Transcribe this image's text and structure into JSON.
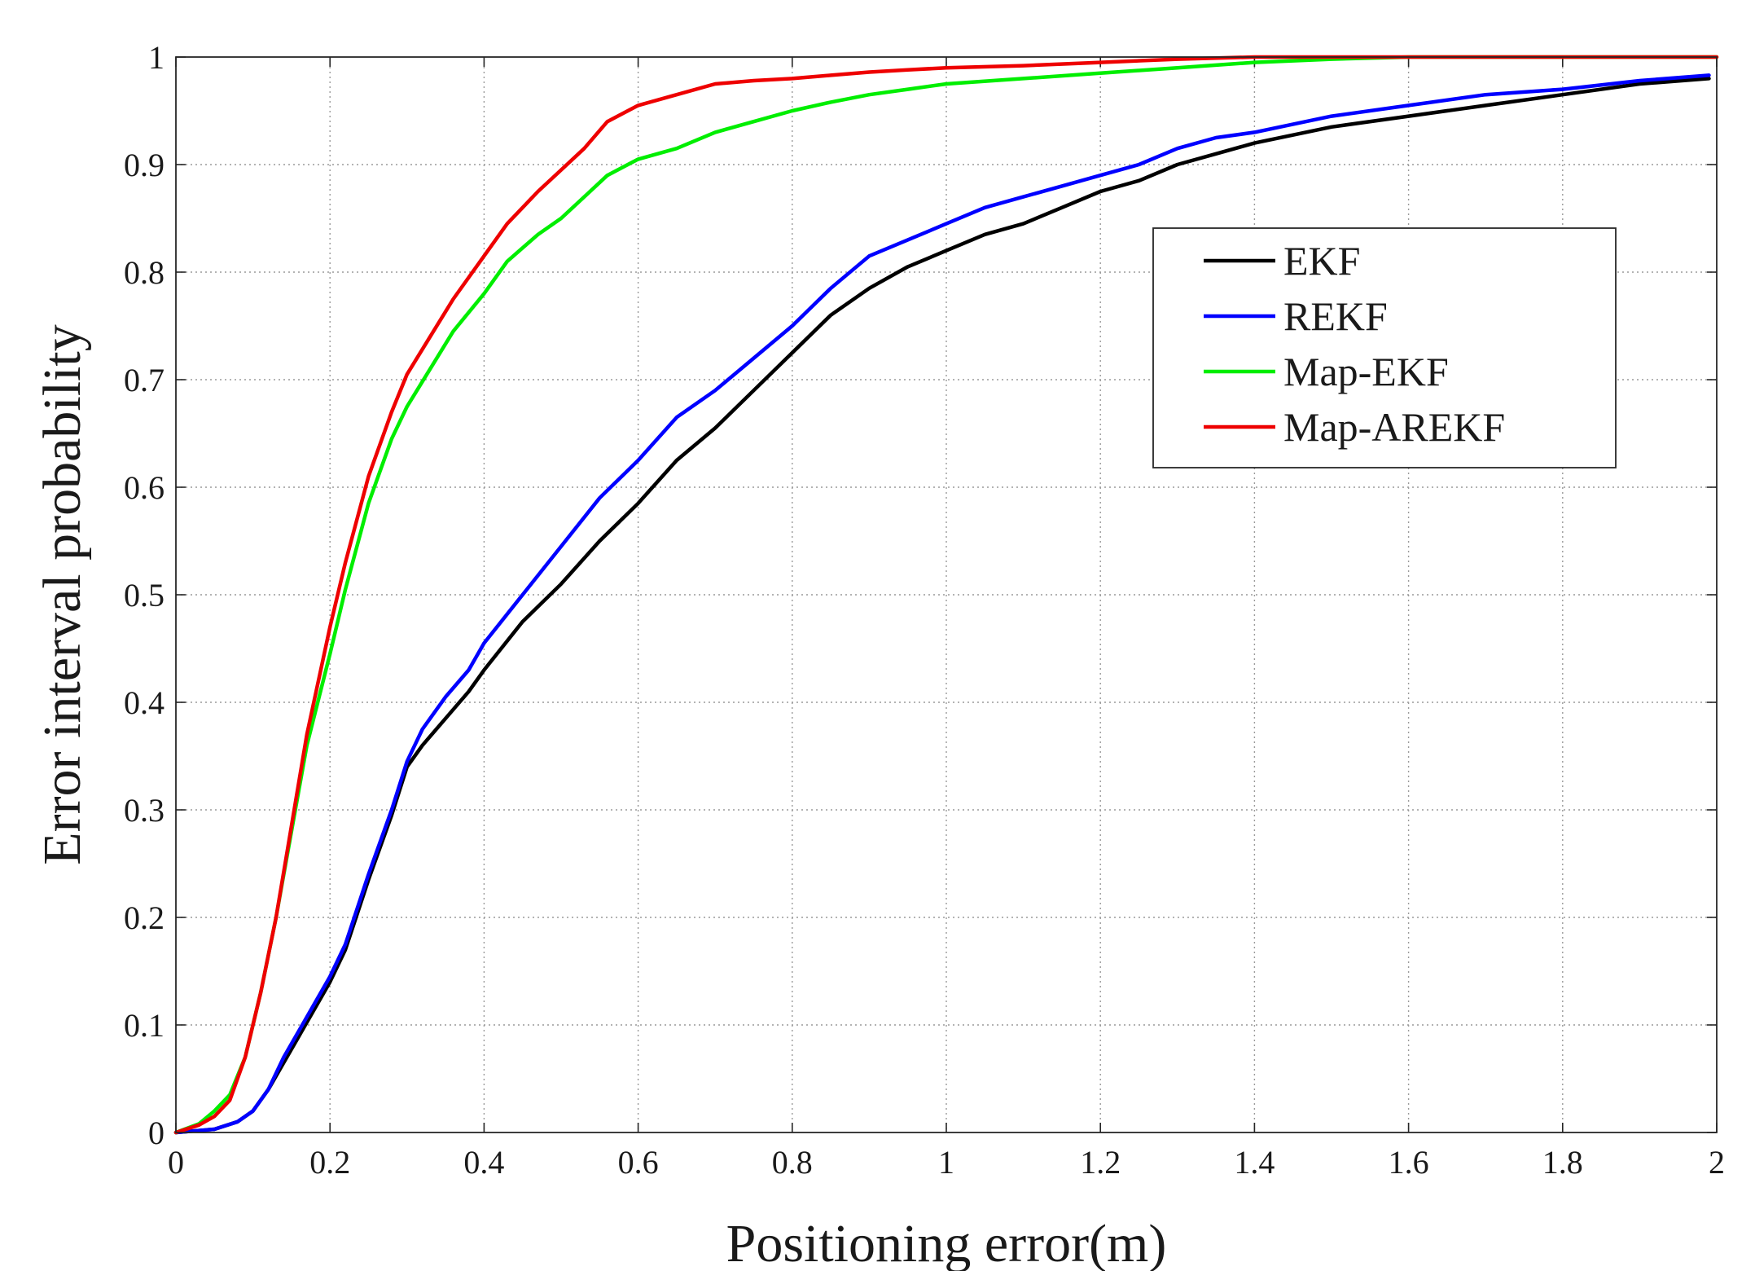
{
  "chart_data": {
    "type": "line",
    "title": "",
    "xlabel": "Positioning error(m)",
    "ylabel": "Error interval probability",
    "xlim": [
      0,
      2
    ],
    "ylim": [
      0,
      1
    ],
    "xticks": [
      "0",
      "0.2",
      "0.4",
      "0.6",
      "0.8",
      "1",
      "1.2",
      "1.4",
      "1.6",
      "1.8",
      "2"
    ],
    "yticks": [
      "0",
      "0.1",
      "0.2",
      "0.3",
      "0.4",
      "0.5",
      "0.6",
      "0.7",
      "0.8",
      "0.9",
      "1"
    ],
    "grid": true,
    "legend_position": "upper-right",
    "series": [
      {
        "name": "EKF",
        "color": "#000000",
        "x": [
          0,
          0.05,
          0.08,
          0.1,
          0.12,
          0.14,
          0.16,
          0.18,
          0.2,
          0.22,
          0.25,
          0.28,
          0.3,
          0.32,
          0.35,
          0.38,
          0.4,
          0.45,
          0.5,
          0.55,
          0.6,
          0.65,
          0.7,
          0.75,
          0.8,
          0.85,
          0.9,
          0.95,
          1.0,
          1.05,
          1.1,
          1.15,
          1.2,
          1.25,
          1.3,
          1.35,
          1.4,
          1.5,
          1.6,
          1.7,
          1.8,
          1.9,
          1.99
        ],
        "y": [
          0,
          0.003,
          0.01,
          0.02,
          0.04,
          0.065,
          0.09,
          0.115,
          0.14,
          0.17,
          0.235,
          0.295,
          0.34,
          0.36,
          0.385,
          0.41,
          0.43,
          0.475,
          0.51,
          0.55,
          0.585,
          0.625,
          0.655,
          0.69,
          0.725,
          0.76,
          0.785,
          0.805,
          0.82,
          0.835,
          0.845,
          0.86,
          0.875,
          0.885,
          0.9,
          0.91,
          0.92,
          0.935,
          0.945,
          0.955,
          0.965,
          0.975,
          0.98
        ]
      },
      {
        "name": "REKF",
        "color": "#0000ff",
        "x": [
          0,
          0.05,
          0.08,
          0.1,
          0.12,
          0.14,
          0.16,
          0.18,
          0.2,
          0.22,
          0.25,
          0.28,
          0.3,
          0.32,
          0.35,
          0.38,
          0.4,
          0.45,
          0.5,
          0.55,
          0.6,
          0.65,
          0.7,
          0.75,
          0.8,
          0.85,
          0.9,
          0.95,
          1.0,
          1.05,
          1.1,
          1.15,
          1.2,
          1.25,
          1.3,
          1.35,
          1.4,
          1.5,
          1.6,
          1.7,
          1.8,
          1.9,
          1.99
        ],
        "y": [
          0,
          0.003,
          0.01,
          0.02,
          0.04,
          0.07,
          0.095,
          0.12,
          0.145,
          0.175,
          0.24,
          0.3,
          0.345,
          0.375,
          0.405,
          0.43,
          0.455,
          0.5,
          0.545,
          0.59,
          0.625,
          0.665,
          0.69,
          0.72,
          0.75,
          0.785,
          0.815,
          0.83,
          0.845,
          0.86,
          0.87,
          0.88,
          0.89,
          0.9,
          0.915,
          0.925,
          0.93,
          0.945,
          0.955,
          0.965,
          0.97,
          0.978,
          0.983
        ]
      },
      {
        "name": "Map-EKF",
        "color": "#00ee00",
        "x": [
          0,
          0.03,
          0.05,
          0.07,
          0.09,
          0.11,
          0.13,
          0.15,
          0.17,
          0.2,
          0.22,
          0.25,
          0.28,
          0.3,
          0.33,
          0.36,
          0.4,
          0.43,
          0.47,
          0.5,
          0.53,
          0.56,
          0.6,
          0.65,
          0.7,
          0.75,
          0.8,
          0.85,
          0.9,
          0.95,
          1.0,
          1.1,
          1.2,
          1.3,
          1.4,
          1.5,
          1.6,
          2.0
        ],
        "y": [
          0,
          0.008,
          0.02,
          0.035,
          0.07,
          0.13,
          0.2,
          0.28,
          0.36,
          0.445,
          0.505,
          0.585,
          0.645,
          0.675,
          0.71,
          0.745,
          0.78,
          0.81,
          0.835,
          0.85,
          0.87,
          0.89,
          0.905,
          0.915,
          0.93,
          0.94,
          0.95,
          0.958,
          0.965,
          0.97,
          0.975,
          0.98,
          0.985,
          0.99,
          0.995,
          0.998,
          1.0,
          1.0
        ]
      },
      {
        "name": "Map-AREKF",
        "color": "#ee0000",
        "x": [
          0,
          0.03,
          0.05,
          0.07,
          0.09,
          0.11,
          0.13,
          0.15,
          0.17,
          0.2,
          0.22,
          0.25,
          0.28,
          0.3,
          0.33,
          0.36,
          0.4,
          0.43,
          0.47,
          0.5,
          0.53,
          0.56,
          0.6,
          0.65,
          0.7,
          0.75,
          0.8,
          0.85,
          0.9,
          0.95,
          1.0,
          1.1,
          1.2,
          1.3,
          1.4,
          1.5,
          1.6,
          2.0
        ],
        "y": [
          0,
          0.007,
          0.015,
          0.03,
          0.07,
          0.13,
          0.2,
          0.285,
          0.37,
          0.47,
          0.53,
          0.61,
          0.67,
          0.705,
          0.74,
          0.775,
          0.815,
          0.845,
          0.875,
          0.895,
          0.915,
          0.94,
          0.955,
          0.965,
          0.975,
          0.978,
          0.98,
          0.983,
          0.986,
          0.988,
          0.99,
          0.992,
          0.995,
          0.998,
          1.0,
          1.0,
          1.0,
          1.0
        ]
      }
    ]
  }
}
